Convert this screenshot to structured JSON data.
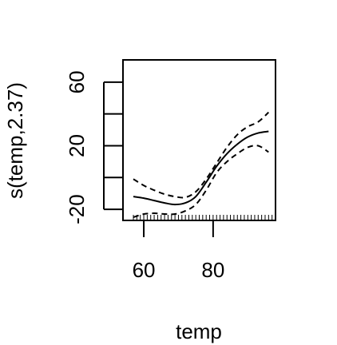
{
  "chart_data": {
    "type": "line",
    "title": "",
    "xlabel": "temp",
    "ylabel": "s(temp,2.37)",
    "xlim": [
      54,
      98
    ],
    "ylim": [
      -27,
      74
    ],
    "x_ticks": [
      60,
      80
    ],
    "x_tick_labels": [
      "60",
      "80"
    ],
    "y_ticks": [
      -20,
      0,
      20,
      40,
      60
    ],
    "y_tick_labels": [
      "-20",
      "",
      "20",
      "",
      "60"
    ],
    "rug": [
      57,
      58,
      59,
      60,
      61,
      62,
      63,
      64,
      65,
      66,
      67,
      68,
      69,
      70,
      71,
      72,
      73,
      74,
      75,
      76,
      77,
      78,
      79,
      80,
      81,
      82,
      83,
      84,
      85,
      86,
      87,
      88,
      89,
      90,
      91,
      92,
      93,
      94,
      95,
      96,
      97
    ],
    "series": [
      {
        "role": "fit",
        "style": "solid",
        "x": [
          57,
          60,
          63,
          66,
          69,
          72,
          75,
          78,
          81,
          84,
          87,
          90,
          93,
          96
        ],
        "y": [
          -12,
          -13,
          -14.5,
          -16,
          -17,
          -16,
          -12,
          -3,
          7,
          15,
          21,
          25.5,
          28,
          29
        ]
      },
      {
        "role": "upper band",
        "style": "dashed",
        "x": [
          57,
          60,
          63,
          66,
          69,
          72,
          75,
          78,
          81,
          84,
          87,
          90,
          93,
          96
        ],
        "y": [
          -1,
          -5,
          -8,
          -10.5,
          -12,
          -12.5,
          -9,
          -1,
          9,
          19,
          27,
          32,
          35,
          41
        ]
      },
      {
        "role": "lower band",
        "style": "dashed",
        "x": [
          57,
          60,
          63,
          66,
          69,
          72,
          75,
          78,
          81,
          84,
          87,
          90,
          93,
          96
        ],
        "y": [
          -25,
          -23,
          -22.5,
          -23,
          -23,
          -21,
          -17,
          -8,
          3,
          10,
          15,
          19,
          20,
          16
        ]
      }
    ],
    "colors": {
      "lines": "#000000",
      "background": "#ffffff"
    },
    "grid": false,
    "legend": "none"
  }
}
